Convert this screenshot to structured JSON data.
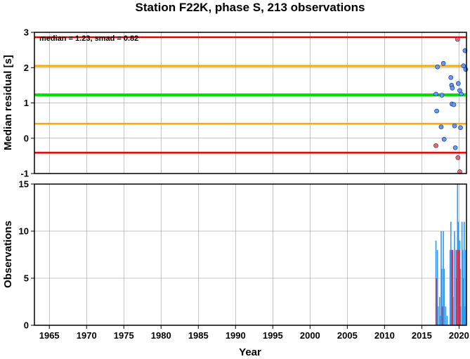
{
  "chart_data": [
    {
      "type": "scatter",
      "title": "Station F22K, phase S, 213 observations",
      "ylabel": "Median residual [s]",
      "annotation": "median = 1.23, smad = 0.82",
      "xlim": [
        1963,
        2021
      ],
      "ylim": [
        -1,
        3
      ],
      "y_ticks": [
        "3",
        "2",
        "1",
        "0",
        "-1"
      ],
      "grid": true,
      "reference_lines": [
        {
          "value": 2.86,
          "color": "#e00000"
        },
        {
          "value": 2.05,
          "color": "#ffa500"
        },
        {
          "value": 1.23,
          "color": "#00e000"
        },
        {
          "value": 0.41,
          "color": "#ffa500"
        },
        {
          "value": -0.41,
          "color": "#e00000"
        }
      ],
      "series": [
        {
          "color": "#6699ff",
          "points": [
            [
              2016.9,
              1.25
            ],
            [
              2017.0,
              0.77
            ],
            [
              2017.1,
              2.02
            ],
            [
              2017.6,
              0.32
            ],
            [
              2017.7,
              1.22
            ],
            [
              2017.9,
              2.12
            ],
            [
              2018.0,
              -0.03
            ],
            [
              2018.9,
              1.72
            ],
            [
              2019.0,
              1.5
            ],
            [
              2019.05,
              0.97
            ],
            [
              2019.1,
              1.42
            ],
            [
              2019.3,
              0.95
            ],
            [
              2019.4,
              0.35
            ],
            [
              2019.5,
              -0.27
            ],
            [
              2019.9,
              1.55
            ],
            [
              2020.1,
              1.35
            ],
            [
              2020.2,
              0.3
            ],
            [
              2020.3,
              1.25
            ],
            [
              2020.6,
              2.05
            ],
            [
              2020.8,
              2.48
            ],
            [
              2020.9,
              1.95
            ]
          ]
        },
        {
          "color": "#ff6666",
          "points": [
            [
              2016.9,
              -0.21
            ],
            [
              2019.8,
              2.8
            ],
            [
              2019.85,
              -0.55
            ],
            [
              2020.1,
              -0.95
            ]
          ]
        }
      ]
    },
    {
      "type": "bar",
      "ylabel": "Observations",
      "xlabel": "Year",
      "xlim": [
        1963,
        2021
      ],
      "ylim": [
        0,
        15
      ],
      "x_ticks": [
        "1965",
        "1970",
        "1975",
        "1980",
        "1985",
        "1990",
        "1995",
        "2000",
        "2005",
        "2010",
        "2015",
        "2020"
      ],
      "y_ticks": [
        "15",
        "10",
        "5",
        "0"
      ],
      "grid": true,
      "series": [
        {
          "color": "#3399ee",
          "bars": [
            [
              2016.9,
              9
            ],
            [
              2017.0,
              5
            ],
            [
              2017.1,
              8
            ],
            [
              2017.2,
              2
            ],
            [
              2017.4,
              3
            ],
            [
              2017.5,
              1
            ],
            [
              2017.6,
              10
            ],
            [
              2017.7,
              6
            ],
            [
              2017.8,
              2
            ],
            [
              2017.9,
              10
            ],
            [
              2018.0,
              6
            ],
            [
              2018.2,
              2
            ],
            [
              2018.4,
              1
            ],
            [
              2018.8,
              8
            ],
            [
              2018.9,
              11
            ],
            [
              2019.0,
              8
            ],
            [
              2019.1,
              5
            ],
            [
              2019.2,
              3
            ],
            [
              2019.4,
              10
            ],
            [
              2019.6,
              8
            ],
            [
              2019.7,
              2
            ],
            [
              2019.8,
              15
            ],
            [
              2019.9,
              11
            ],
            [
              2020.0,
              6
            ],
            [
              2020.1,
              9
            ],
            [
              2020.2,
              2
            ],
            [
              2020.4,
              11
            ],
            [
              2020.5,
              8
            ],
            [
              2020.6,
              5
            ],
            [
              2020.7,
              11
            ],
            [
              2020.8,
              2
            ],
            [
              2020.9,
              8
            ]
          ]
        },
        {
          "color": "#cc3355",
          "bars": [
            [
              2016.95,
              5
            ],
            [
              2017.75,
              2
            ],
            [
              2019.05,
              8
            ],
            [
              2019.15,
              8
            ],
            [
              2019.65,
              5
            ],
            [
              2019.75,
              8
            ],
            [
              2019.95,
              8
            ],
            [
              2020.05,
              8
            ],
            [
              2020.15,
              6
            ]
          ]
        }
      ]
    }
  ]
}
